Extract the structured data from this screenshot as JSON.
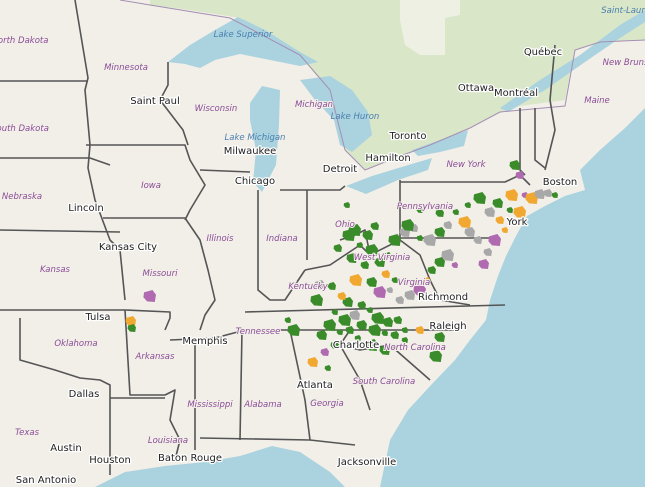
{
  "map": {
    "colors": {
      "land": "#f2efe9",
      "water": "#aad3df",
      "forest": "#d6e5c4",
      "green": "#3a8c2a",
      "orange": "#f0a830",
      "purple": "#b06ab0",
      "gray": "#a8a8a8",
      "state_label": "#8a4c96"
    },
    "cities": [
      "Saint Paul",
      "Milwaukee",
      "Chicago",
      "Detroit",
      "Toronto",
      "Hamilton",
      "Ottawa",
      "Montréal",
      "Québec",
      "Boston",
      "York",
      "Richmond",
      "Raleigh",
      "Charlotte",
      "Atlanta",
      "Jacksonville",
      "Kansas City",
      "Tulsa",
      "Memphis",
      "Dallas",
      "Austin",
      "Houston",
      "San Antonio",
      "Baton Rouge",
      "Lincoln"
    ],
    "states": [
      "North Dakota",
      "Minnesota",
      "South Dakota",
      "Wisconsin",
      "Michigan",
      "Iowa",
      "Nebraska",
      "Illinois",
      "Indiana",
      "Ohio",
      "Pennsylvania",
      "New York",
      "Maine",
      "Kansas",
      "Missouri",
      "Kentucky",
      "Tennessee",
      "Virginia",
      "West Virginia",
      "Oklahoma",
      "Arkansas",
      "North Carolina",
      "South Carolina",
      "Georgia",
      "Mississippi",
      "Alabama",
      "Texas",
      "Louisiana",
      "New Brunswick"
    ],
    "water": [
      "Lake Superior",
      "Lake Michigan",
      "Lake Huron",
      "Saint-Laurent"
    ]
  }
}
